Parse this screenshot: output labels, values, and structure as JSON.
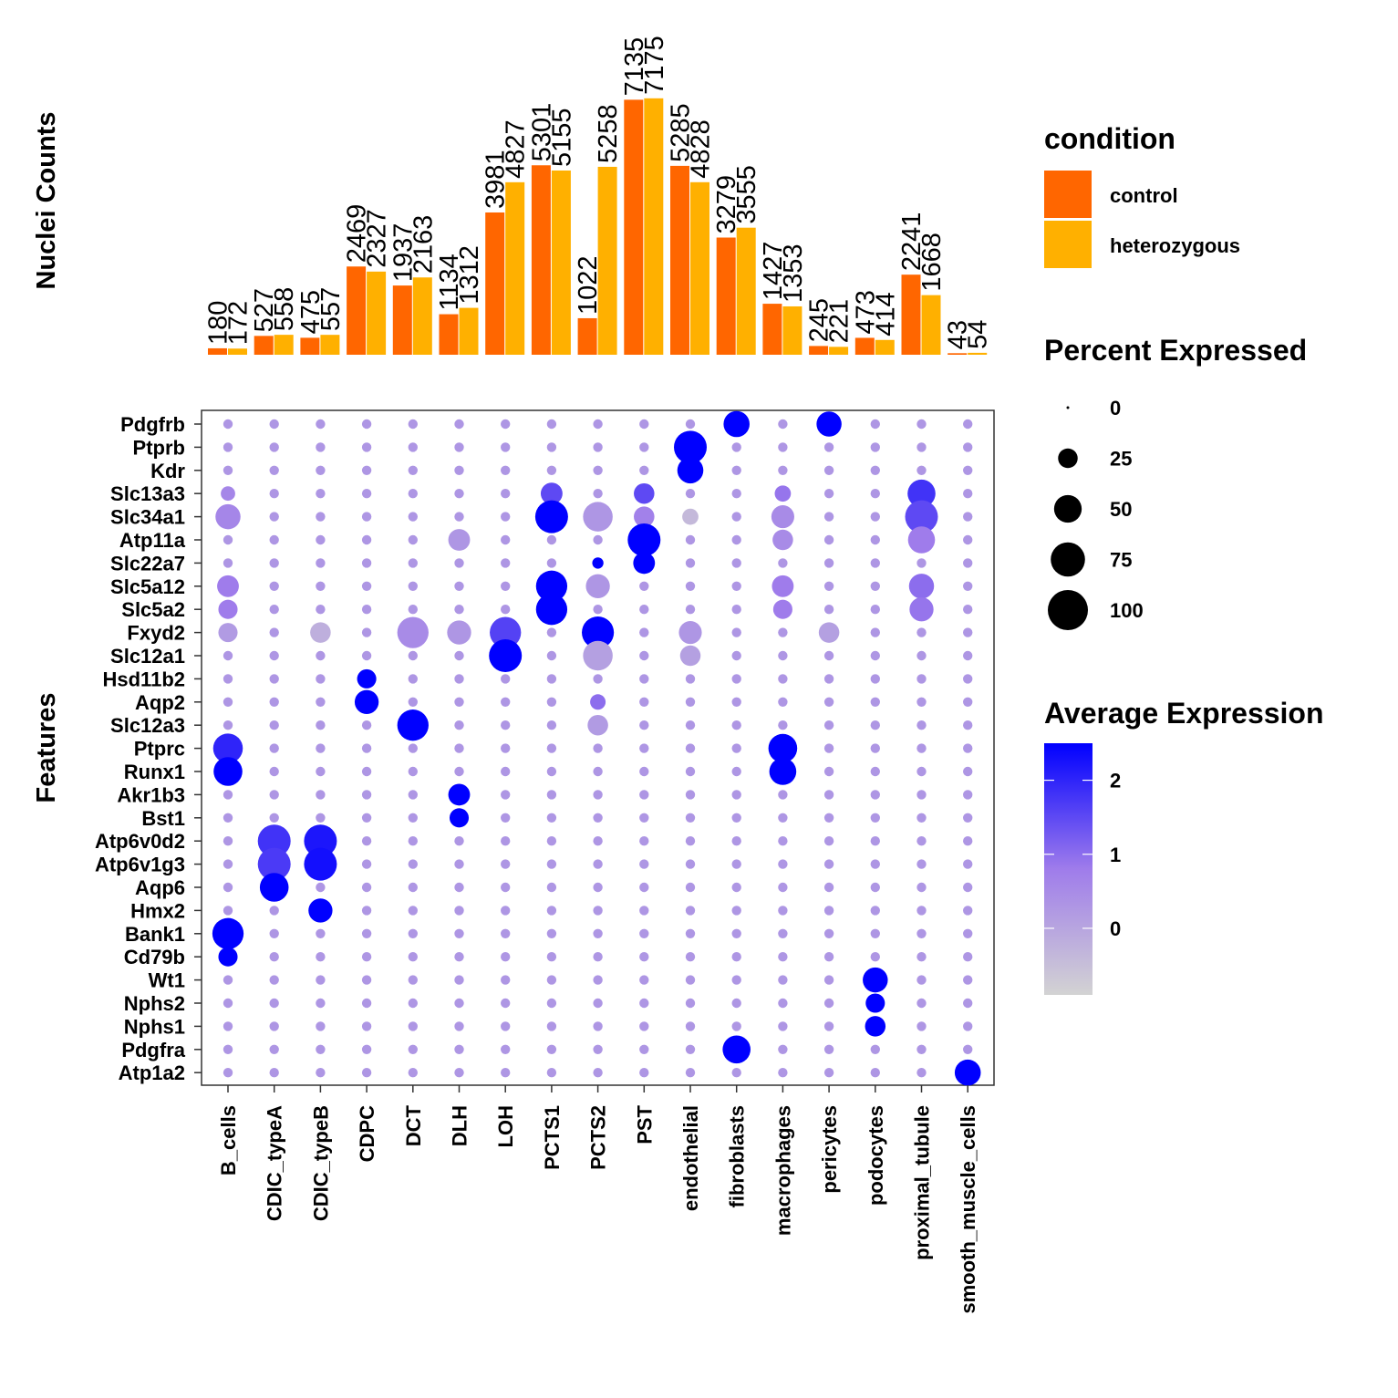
{
  "chart_data": [
    {
      "type": "bar",
      "ylabel": "Nuclei Counts",
      "categories": [
        "B_cells",
        "CDIC_typeA",
        "CDIC_typeB",
        "CDPC",
        "DCT",
        "DLH",
        "LOH",
        "PCTS1",
        "PCTS2",
        "PST",
        "endothelial",
        "fibroblasts",
        "macrophages",
        "pericytes",
        "podocytes",
        "proximal_tubule",
        "smooth_muscle_cells"
      ],
      "series": [
        {
          "name": "control",
          "values": [
            180,
            527,
            475,
            2469,
            1937,
            1134,
            3981,
            5301,
            1022,
            7135,
            5285,
            3279,
            1427,
            245,
            473,
            2241,
            43
          ]
        },
        {
          "name": "heterozygous",
          "values": [
            172,
            558,
            557,
            2327,
            2163,
            1312,
            4827,
            5155,
            5258,
            7175,
            4828,
            3555,
            1353,
            221,
            414,
            1668,
            54
          ]
        }
      ],
      "series_colors": [
        "#FF6600",
        "#FFB000"
      ],
      "ylim": [
        0,
        7400
      ],
      "legend": {
        "title": "condition",
        "placement": "right"
      }
    },
    {
      "type": "scatter",
      "subtype": "dot-plot",
      "ylabel": "Features",
      "clusters": [
        "B_cells",
        "CDIC_typeA",
        "CDIC_typeB",
        "CDPC",
        "DCT",
        "DLH",
        "LOH",
        "PCTS1",
        "PCTS2",
        "PST",
        "endothelial",
        "fibroblasts",
        "macrophages",
        "pericytes",
        "podocytes",
        "proximal_tubule",
        "smooth_muscle_cells"
      ],
      "features": [
        "Pdgfrb",
        "Ptprb",
        "Kdr",
        "Slc13a3",
        "Slc34a1",
        "Atp11a",
        "Slc22a7",
        "Slc5a12",
        "Slc5a2",
        "Fxyd2",
        "Slc12a1",
        "Hsd11b2",
        "Aqp2",
        "Slc12a3",
        "Ptprc",
        "Runx1",
        "Akr1b3",
        "Bst1",
        "Atp6v0d2",
        "Atp6v1g3",
        "Aqp6",
        "Hmx2",
        "Bank1",
        "Cd79b",
        "Wt1",
        "Nphs2",
        "Nphs1",
        "Pdgfra",
        "Atp1a2"
      ],
      "size_legend": {
        "title": "Percent Expressed",
        "breaks": [
          0,
          25,
          50,
          75,
          100
        ]
      },
      "color_legend": {
        "title": "Average Expression",
        "breaks": [
          2,
          1,
          0
        ],
        "range": [
          -0.9,
          2.5
        ],
        "low_color": "#D3D3D3",
        "high_color": "#0000FF"
      },
      "dots": [
        {
          "feature": "Pdgfrb",
          "cluster": "fibroblasts",
          "pct": 60,
          "avg": 2.5
        },
        {
          "feature": "Pdgfrb",
          "cluster": "pericytes",
          "pct": 55,
          "avg": 2.5
        },
        {
          "feature": "Ptprb",
          "cluster": "endothelial",
          "pct": 100,
          "avg": 2.5
        },
        {
          "feature": "Kdr",
          "cluster": "endothelial",
          "pct": 60,
          "avg": 2.5
        },
        {
          "feature": "Slc13a3",
          "cluster": "B_cells",
          "pct": 15,
          "avg": 0.6
        },
        {
          "feature": "Slc13a3",
          "cluster": "PCTS1",
          "pct": 40,
          "avg": 1.5
        },
        {
          "feature": "Slc13a3",
          "cluster": "PST",
          "pct": 35,
          "avg": 1.5
        },
        {
          "feature": "Slc13a3",
          "cluster": "macrophages",
          "pct": 20,
          "avg": 0.9
        },
        {
          "feature": "Slc13a3",
          "cluster": "proximal_tubule",
          "pct": 70,
          "avg": 1.8
        },
        {
          "feature": "Slc34a1",
          "cluster": "B_cells",
          "pct": 55,
          "avg": 0.6
        },
        {
          "feature": "Slc34a1",
          "cluster": "PCTS1",
          "pct": 100,
          "avg": 2.5
        },
        {
          "feature": "Slc34a1",
          "cluster": "PCTS2",
          "pct": 80,
          "avg": 0.3
        },
        {
          "feature": "Slc34a1",
          "cluster": "PST",
          "pct": 35,
          "avg": 0.7
        },
        {
          "feature": "Slc34a1",
          "cluster": "endothelial",
          "pct": 20,
          "avg": -0.4
        },
        {
          "feature": "Slc34a1",
          "cluster": "macrophages",
          "pct": 45,
          "avg": 0.5
        },
        {
          "feature": "Slc34a1",
          "cluster": "proximal_tubule",
          "pct": 100,
          "avg": 1.5
        },
        {
          "feature": "Atp11a",
          "cluster": "PST",
          "pct": 100,
          "avg": 2.5
        },
        {
          "feature": "Atp11a",
          "cluster": "proximal_tubule",
          "pct": 65,
          "avg": 0.8
        },
        {
          "feature": "Atp11a",
          "cluster": "DLH",
          "pct": 40,
          "avg": 0.3
        },
        {
          "feature": "Atp11a",
          "cluster": "macrophages",
          "pct": 35,
          "avg": 0.5
        },
        {
          "feature": "Slc22a7",
          "cluster": "PST",
          "pct": 40,
          "avg": 2.5
        },
        {
          "feature": "Slc22a7",
          "cluster": "PCTS2",
          "pct": 8,
          "avg": 2.5
        },
        {
          "feature": "Slc5a12",
          "cluster": "PCTS1",
          "pct": 90,
          "avg": 2.5
        },
        {
          "feature": "Slc5a12",
          "cluster": "B_cells",
          "pct": 40,
          "avg": 0.8
        },
        {
          "feature": "Slc5a12",
          "cluster": "PCTS2",
          "pct": 50,
          "avg": 0.3
        },
        {
          "feature": "Slc5a12",
          "cluster": "macrophages",
          "pct": 40,
          "avg": 0.8
        },
        {
          "feature": "Slc5a12",
          "cluster": "proximal_tubule",
          "pct": 55,
          "avg": 1.0
        },
        {
          "feature": "Slc5a2",
          "cluster": "PCTS1",
          "pct": 90,
          "avg": 2.5
        },
        {
          "feature": "Slc5a2",
          "cluster": "B_cells",
          "pct": 30,
          "avg": 0.8
        },
        {
          "feature": "Slc5a2",
          "cluster": "macrophages",
          "pct": 30,
          "avg": 0.8
        },
        {
          "feature": "Slc5a2",
          "cluster": "proximal_tubule",
          "pct": 50,
          "avg": 0.9
        },
        {
          "feature": "Fxyd2",
          "cluster": "DCT",
          "pct": 90,
          "avg": 0.5
        },
        {
          "feature": "Fxyd2",
          "cluster": "LOH",
          "pct": 90,
          "avg": 1.6
        },
        {
          "feature": "Fxyd2",
          "cluster": "PCTS2",
          "pct": 95,
          "avg": 2.5
        },
        {
          "feature": "Fxyd2",
          "cluster": "DLH",
          "pct": 50,
          "avg": 0.3
        },
        {
          "feature": "Fxyd2",
          "cluster": "B_cells",
          "pct": 30,
          "avg": 0.2
        },
        {
          "feature": "Fxyd2",
          "cluster": "CDIC_typeB",
          "pct": 35,
          "avg": -0.2
        },
        {
          "feature": "Fxyd2",
          "cluster": "endothelial",
          "pct": 45,
          "avg": 0.3
        },
        {
          "feature": "Fxyd2",
          "cluster": "pericytes",
          "pct": 35,
          "avg": 0.1
        },
        {
          "feature": "Slc12a1",
          "cluster": "LOH",
          "pct": 100,
          "avg": 2.5
        },
        {
          "feature": "Slc12a1",
          "cluster": "PCTS2",
          "pct": 80,
          "avg": 0.1
        },
        {
          "feature": "Slc12a1",
          "cluster": "endothelial",
          "pct": 35,
          "avg": 0.1
        },
        {
          "feature": "Hsd11b2",
          "cluster": "CDPC",
          "pct": 30,
          "avg": 2.5
        },
        {
          "feature": "Aqp2",
          "cluster": "CDPC",
          "pct": 50,
          "avg": 2.5
        },
        {
          "feature": "Aqp2",
          "cluster": "PCTS2",
          "pct": 18,
          "avg": 1.0
        },
        {
          "feature": "Slc12a3",
          "cluster": "DCT",
          "pct": 90,
          "avg": 2.5
        },
        {
          "feature": "Slc12a3",
          "cluster": "PCTS2",
          "pct": 35,
          "avg": 0.2
        },
        {
          "feature": "Ptprc",
          "cluster": "B_cells",
          "pct": 80,
          "avg": 2.0
        },
        {
          "feature": "Ptprc",
          "cluster": "macrophages",
          "pct": 75,
          "avg": 2.5
        },
        {
          "feature": "Runx1",
          "cluster": "B_cells",
          "pct": 75,
          "avg": 2.5
        },
        {
          "feature": "Runx1",
          "cluster": "macrophages",
          "pct": 65,
          "avg": 2.5
        },
        {
          "feature": "Akr1b3",
          "cluster": "DLH",
          "pct": 40,
          "avg": 2.5
        },
        {
          "feature": "Bst1",
          "cluster": "DLH",
          "pct": 30,
          "avg": 2.5
        },
        {
          "feature": "Atp6v0d2",
          "cluster": "CDIC_typeA",
          "pct": 100,
          "avg": 1.8
        },
        {
          "feature": "Atp6v0d2",
          "cluster": "CDIC_typeB",
          "pct": 100,
          "avg": 2.2
        },
        {
          "feature": "Atp6v1g3",
          "cluster": "CDIC_typeA",
          "pct": 100,
          "avg": 1.7
        },
        {
          "feature": "Atp6v1g3",
          "cluster": "CDIC_typeB",
          "pct": 100,
          "avg": 2.3
        },
        {
          "feature": "Aqp6",
          "cluster": "CDIC_typeA",
          "pct": 75,
          "avg": 2.5
        },
        {
          "feature": "Hmx2",
          "cluster": "CDIC_typeB",
          "pct": 50,
          "avg": 2.5
        },
        {
          "feature": "Bank1",
          "cluster": "B_cells",
          "pct": 90,
          "avg": 2.5
        },
        {
          "feature": "Cd79b",
          "cluster": "B_cells",
          "pct": 30,
          "avg": 2.5
        },
        {
          "feature": "Wt1",
          "cluster": "podocytes",
          "pct": 55,
          "avg": 2.5
        },
        {
          "feature": "Nphs2",
          "cluster": "podocytes",
          "pct": 30,
          "avg": 2.5
        },
        {
          "feature": "Nphs1",
          "cluster": "podocytes",
          "pct": 35,
          "avg": 2.5
        },
        {
          "feature": "Pdgfra",
          "cluster": "fibroblasts",
          "pct": 70,
          "avg": 2.5
        },
        {
          "feature": "Atp1a2",
          "cluster": "smooth_muscle_cells",
          "pct": 60,
          "avg": 2.5
        }
      ],
      "background_dot": {
        "pct": 5,
        "avg": 0.3
      }
    }
  ]
}
